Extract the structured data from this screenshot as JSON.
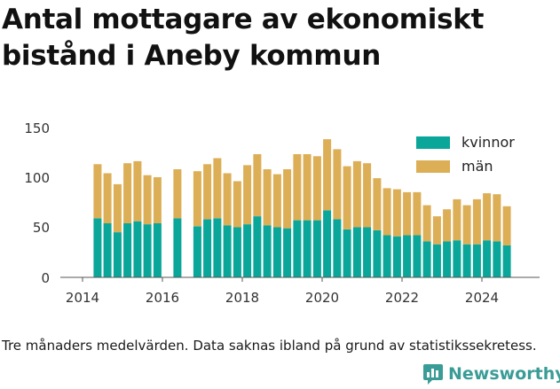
{
  "title": "Antal mottagare av ekonomiskt bistånd i Aneby kommun",
  "note": "Tre månaders medelvärden. Data saknas ibland på grund av statistikssekretess.",
  "brand": {
    "name": "Newsworthy",
    "icon": "newsworthy-logo-icon"
  },
  "colors": {
    "kvinnor": "#0aa699",
    "man": "#dcae56",
    "axis": "#333333",
    "grid": "#cccccc"
  },
  "chart_data": {
    "type": "bar",
    "stacked": true,
    "ylim": [
      0,
      150
    ],
    "yticks": [
      0,
      50,
      100,
      150
    ],
    "xticks": [
      "2014",
      "2016",
      "2018",
      "2020",
      "2022",
      "2024"
    ],
    "legend": {
      "placement": "top-right",
      "entries": [
        "kvinnor",
        "män"
      ]
    },
    "grid": false,
    "x": [
      2014.375,
      2014.625,
      2014.875,
      2015.125,
      2015.375,
      2015.625,
      2015.875,
      2016.375,
      2016.875,
      2017.125,
      2017.375,
      2017.625,
      2017.875,
      2018.125,
      2018.375,
      2018.625,
      2018.875,
      2019.125,
      2019.375,
      2019.625,
      2019.875,
      2020.125,
      2020.375,
      2020.625,
      2020.875,
      2021.125,
      2021.375,
      2021.625,
      2021.875,
      2022.125,
      2022.375,
      2022.625,
      2022.875,
      2023.125,
      2023.375,
      2023.625,
      2023.875,
      2024.125,
      2024.375,
      2024.625
    ],
    "series": [
      {
        "name": "kvinnor",
        "values": [
          59,
          54,
          45,
          54,
          56,
          53,
          54,
          59,
          51,
          58,
          59,
          52,
          50,
          53,
          61,
          52,
          50,
          49,
          57,
          57,
          57,
          67,
          58,
          48,
          50,
          50,
          47,
          42,
          41,
          42,
          42,
          36,
          33,
          36,
          37,
          33,
          33,
          37,
          36,
          32
        ]
      },
      {
        "name": "män",
        "values": [
          54,
          50,
          48,
          60,
          60,
          49,
          46,
          49,
          55,
          55,
          60,
          52,
          46,
          59,
          62,
          56,
          53,
          59,
          66,
          66,
          64,
          71,
          70,
          63,
          66,
          64,
          52,
          47,
          47,
          43,
          43,
          36,
          28,
          32,
          41,
          39,
          45,
          47,
          47,
          39
        ]
      }
    ]
  }
}
